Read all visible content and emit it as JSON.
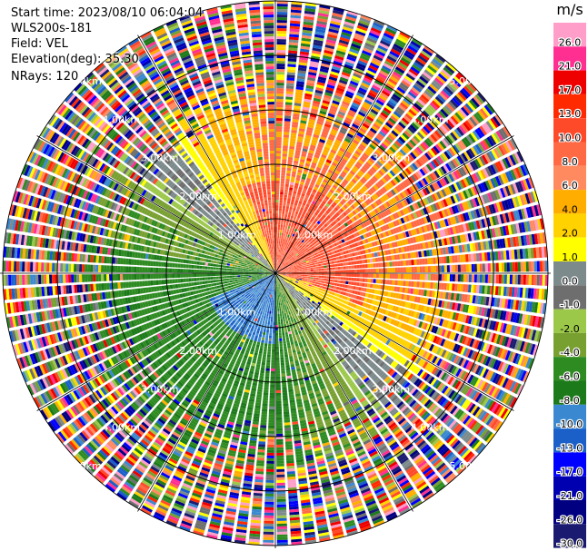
{
  "header": {
    "start_time": "Start time: 2023/08/10 06:04:04",
    "instrument": "WLS200s-181",
    "field": "Field: VEL",
    "elevation": "Elevation(deg): 35.30",
    "nrays": "NRays: 120"
  },
  "range_rings": {
    "unit": "km",
    "labels": [
      "1.00km",
      "2.00km",
      "3.00km",
      "4.00km",
      "5.00km"
    ]
  },
  "colorbar": {
    "unit": "m/s",
    "ticks": [
      "26.0",
      "21.0",
      "17.0",
      "13.0",
      "10.0",
      "8.0",
      "6.0",
      "4.0",
      "2.0",
      "1.0",
      "0.0",
      "-1.0",
      "-2.0",
      "-4.0",
      "-6.0",
      "-8.0",
      "-10.0",
      "-13.0",
      "-17.0",
      "-21.0",
      "-26.0",
      "-30.0"
    ],
    "colors": [
      "#ff9ec8",
      "#ff2f92",
      "#ee0000",
      "#ff2a00",
      "#ff4a2a",
      "#ff6a45",
      "#ff8a60",
      "#ffae00",
      "#ffd200",
      "#ffff00",
      "#7c8a8c",
      "#6e6e6e",
      "#9cc84a",
      "#78a030",
      "#2e8b22",
      "#1d7a1a",
      "#3a88d0",
      "#1a60c8",
      "#0000ff",
      "#0000b0",
      "#000080",
      "#1a1a70"
    ]
  }
}
